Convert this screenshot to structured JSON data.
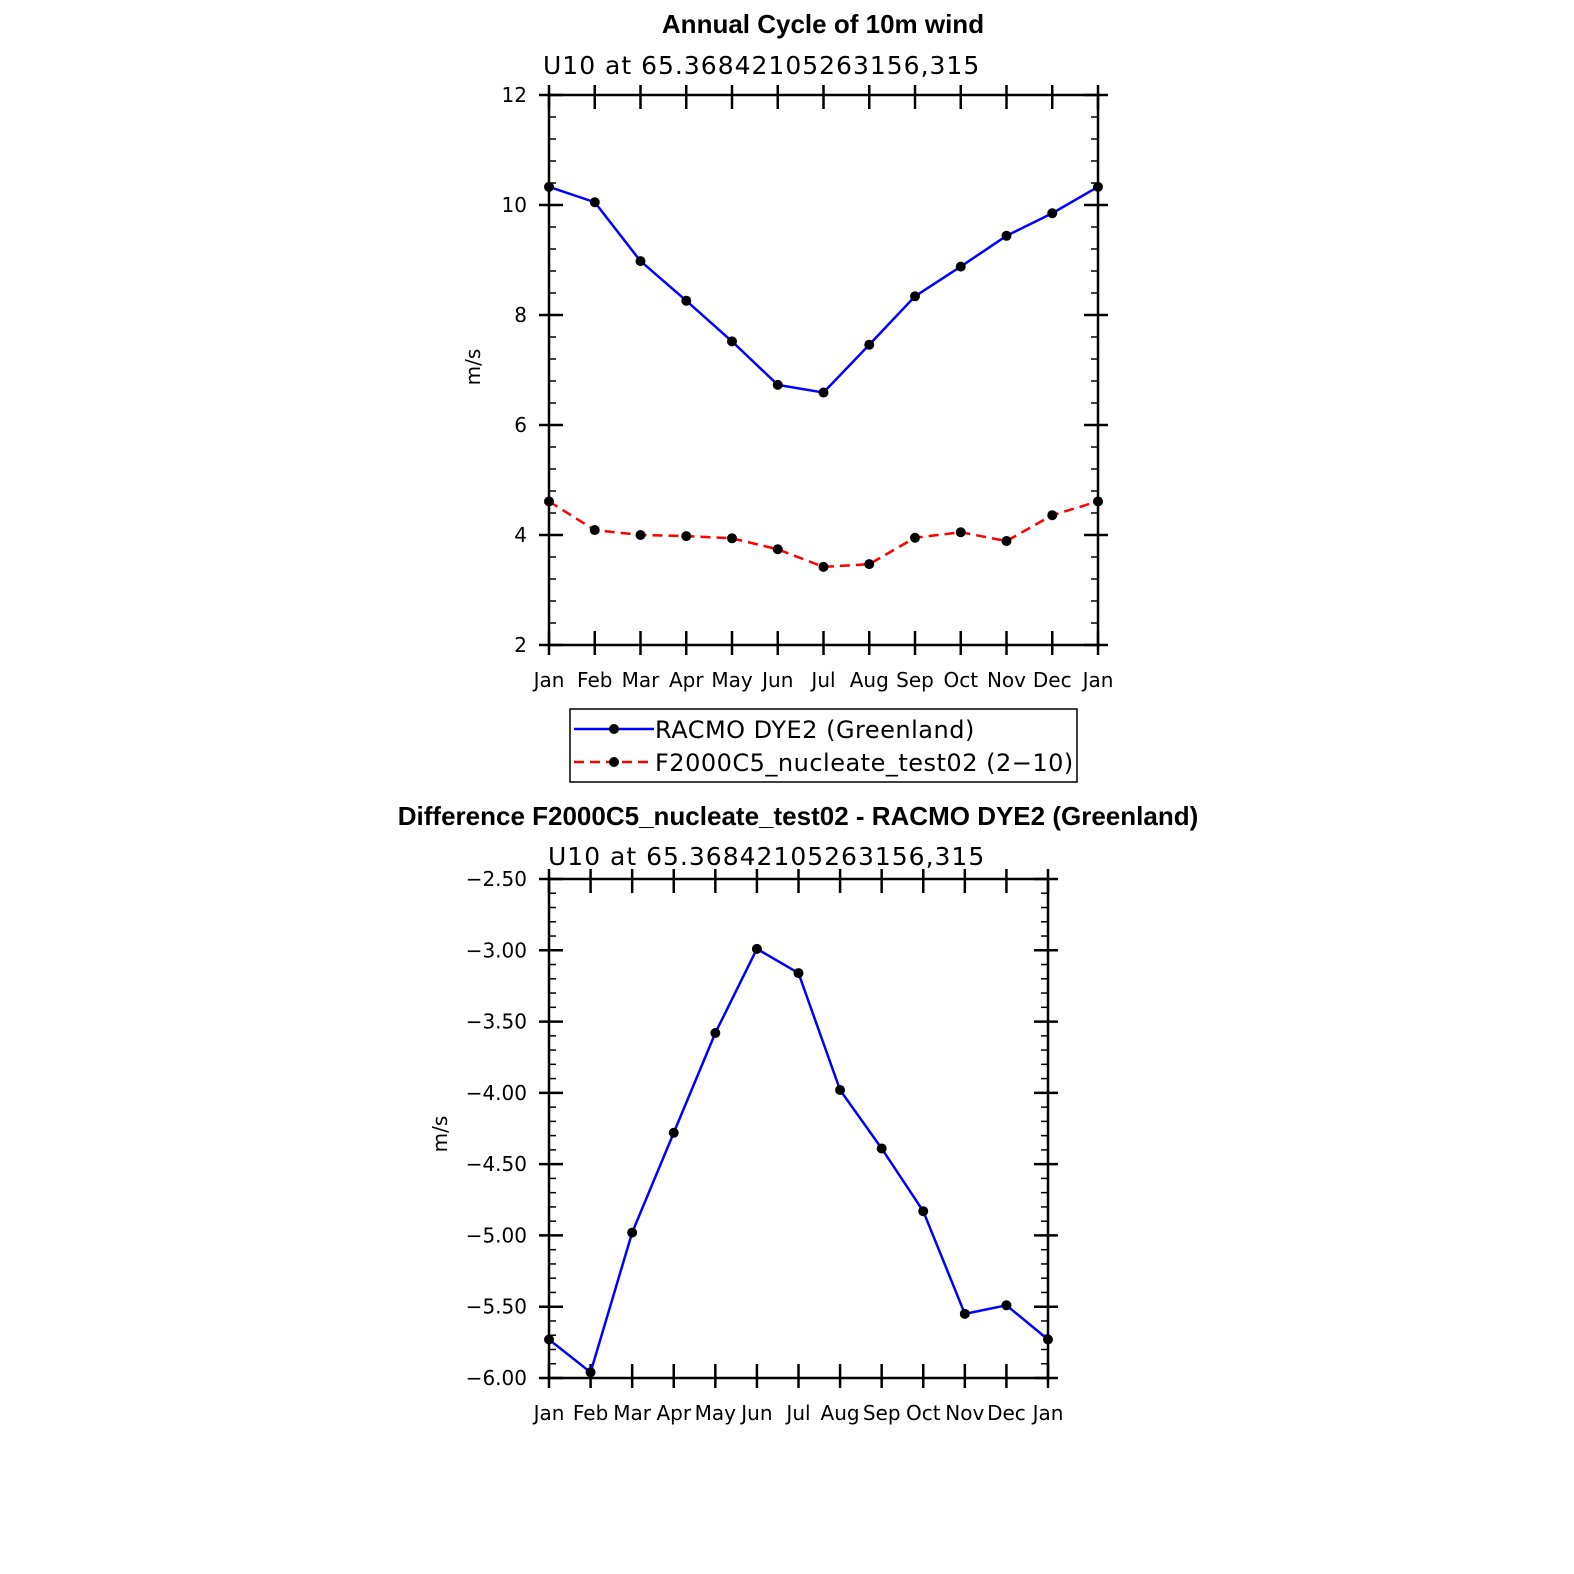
{
  "chart_data": [
    {
      "type": "line",
      "title": "Annual Cycle of 10m wind",
      "subtitle": "U10 at 65.36842105263156,315",
      "xlabel": "",
      "ylabel": "m/s",
      "categories": [
        "Jan",
        "Feb",
        "Mar",
        "Apr",
        "May",
        "Jun",
        "Jul",
        "Aug",
        "Sep",
        "Oct",
        "Nov",
        "Dec",
        "Jan"
      ],
      "ylim": [
        2,
        12
      ],
      "yticks": [
        "2",
        "4",
        "6",
        "8",
        "10",
        "12"
      ],
      "grid": false,
      "legend_position": "bottom",
      "series": [
        {
          "name": "RACMO DYE2 (Greenland)",
          "values": [
            10.33,
            10.05,
            8.98,
            8.26,
            7.52,
            6.73,
            6.59,
            7.46,
            8.34,
            8.88,
            9.44,
            9.85,
            10.33
          ],
          "color": "#0000ff",
          "dash": "solid"
        },
        {
          "name": "F2000C5_nucleate_test02 (2−10)",
          "values": [
            4.61,
            4.09,
            4.0,
            3.98,
            3.94,
            3.74,
            3.42,
            3.47,
            3.95,
            4.05,
            3.89,
            4.36,
            4.61
          ],
          "color": "#ff0000",
          "dash": "dashed"
        }
      ]
    },
    {
      "type": "line",
      "title": "Difference F2000C5_nucleate_test02 - RACMO DYE2 (Greenland)",
      "subtitle": "U10 at 65.36842105263156,315",
      "xlabel": "",
      "ylabel": "m/s",
      "categories": [
        "Jan",
        "Feb",
        "Mar",
        "Apr",
        "May",
        "Jun",
        "Jul",
        "Aug",
        "Sep",
        "Oct",
        "Nov",
        "Dec",
        "Jan"
      ],
      "ylim": [
        -6.0,
        -2.5
      ],
      "yticks": [
        "−6.00",
        "−5.50",
        "−5.00",
        "−4.50",
        "−4.00",
        "−3.50",
        "−3.00",
        "−2.50"
      ],
      "grid": false,
      "series": [
        {
          "values": [
            -5.73,
            -5.96,
            -4.98,
            -4.28,
            -3.58,
            -2.99,
            -3.16,
            -3.98,
            -4.39,
            -4.83,
            -5.55,
            -5.49,
            -5.73
          ],
          "color": "#0000ff",
          "dash": "solid"
        }
      ]
    }
  ]
}
